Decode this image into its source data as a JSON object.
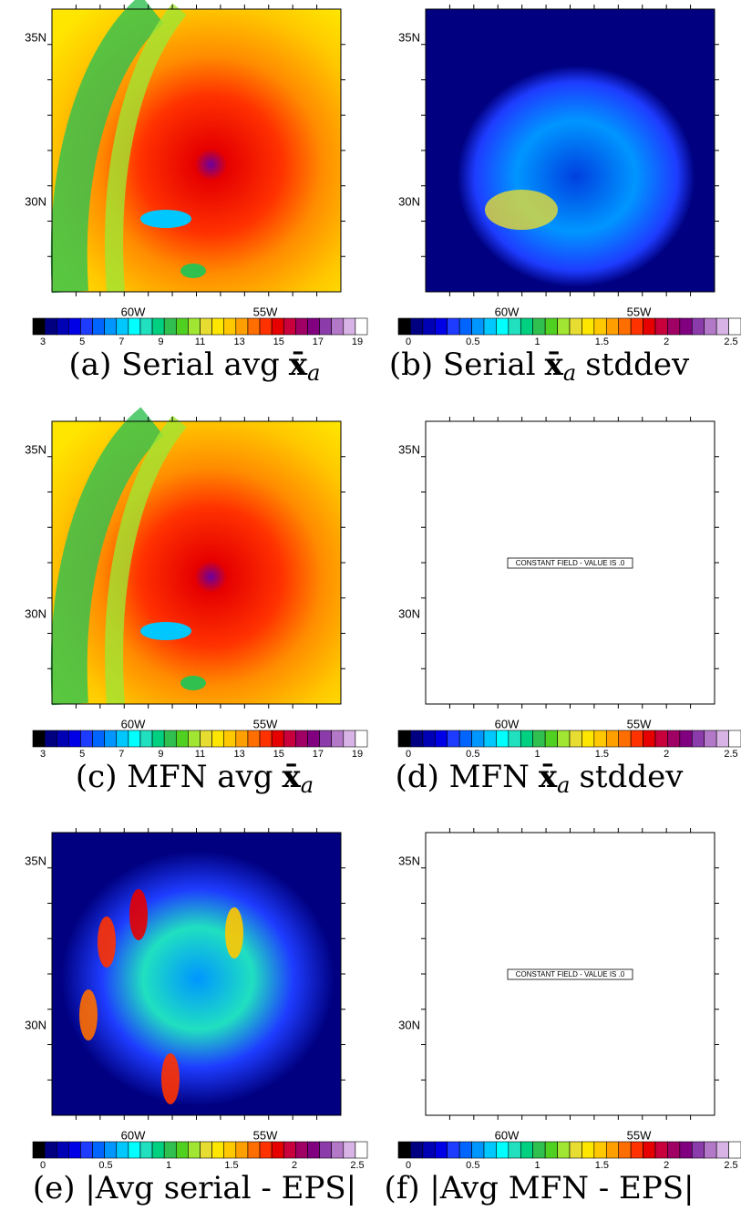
{
  "colorbar_colors": [
    "#000000",
    "#000080",
    "#0000b4",
    "#0000e6",
    "#1e3cff",
    "#0064ff",
    "#0096ff",
    "#00c8ff",
    "#00ffff",
    "#20e0c0",
    "#00d080",
    "#30c050",
    "#50d020",
    "#a0e632",
    "#e6dc32",
    "#ffe600",
    "#ffc800",
    "#ffa000",
    "#ff6e00",
    "#ff3200",
    "#e60000",
    "#c8003c",
    "#a00064",
    "#800080",
    "#8c3caa",
    "#b478c8",
    "#d8b4e6",
    "#ffffff"
  ],
  "panels": [
    {
      "lat_labels": [
        "35N",
        "30N"
      ],
      "lon_labels": [
        "60W",
        "55W"
      ],
      "colorbar_labels": [
        3,
        5,
        7,
        9,
        11,
        13,
        15,
        17,
        19
      ],
      "caption": {
        "text": "(a) Serial avg",
        "symbol": "x̄",
        "subscript": "a"
      }
    },
    {
      "lat_labels": [
        "35N",
        "30N"
      ],
      "lon_labels": [
        "60W",
        "55W"
      ],
      "colorbar_labels": [
        0,
        0.5,
        1,
        1.5,
        2,
        2.5
      ],
      "caption": {
        "text": "(b) Serial",
        "symbol": "x̄",
        "subscript": "a",
        "suffix": "stddev"
      }
    },
    {
      "lat_labels": [
        "35N",
        "30N"
      ],
      "lon_labels": [
        "60W",
        "55W"
      ],
      "colorbar_labels": [
        3,
        5,
        7,
        9,
        11,
        13,
        15,
        17,
        19
      ],
      "caption": {
        "text": "(c) MFN avg",
        "symbol": "x̄",
        "subscript": "a"
      }
    },
    {
      "lat_labels": [
        "35N",
        "30N"
      ],
      "lon_labels": [
        "60W",
        "55W"
      ],
      "colorbar_labels": [
        0,
        0.5,
        1,
        1.5,
        2,
        2.5
      ],
      "note": "CONSTANT FIELD - VALUE IS .0",
      "caption": {
        "text": "(d) MFN",
        "symbol": "x̄",
        "subscript": "a",
        "suffix": "stddev"
      }
    },
    {
      "lat_labels": [
        "35N",
        "30N"
      ],
      "lon_labels": [
        "60W",
        "55W"
      ],
      "colorbar_labels": [
        0,
        0.5,
        1,
        1.5,
        2,
        2.5
      ],
      "caption": {
        "text": "(e) |Avg serial - EPS|"
      }
    },
    {
      "lat_labels": [
        "35N",
        "30N"
      ],
      "lon_labels": [
        "60W",
        "55W"
      ],
      "colorbar_labels": [
        0,
        0.5,
        1,
        1.5,
        2,
        2.5
      ],
      "note": "CONSTANT FIELD - VALUE IS .0",
      "caption": {
        "text": "(f) |Avg MFN - EPS|"
      }
    }
  ]
}
